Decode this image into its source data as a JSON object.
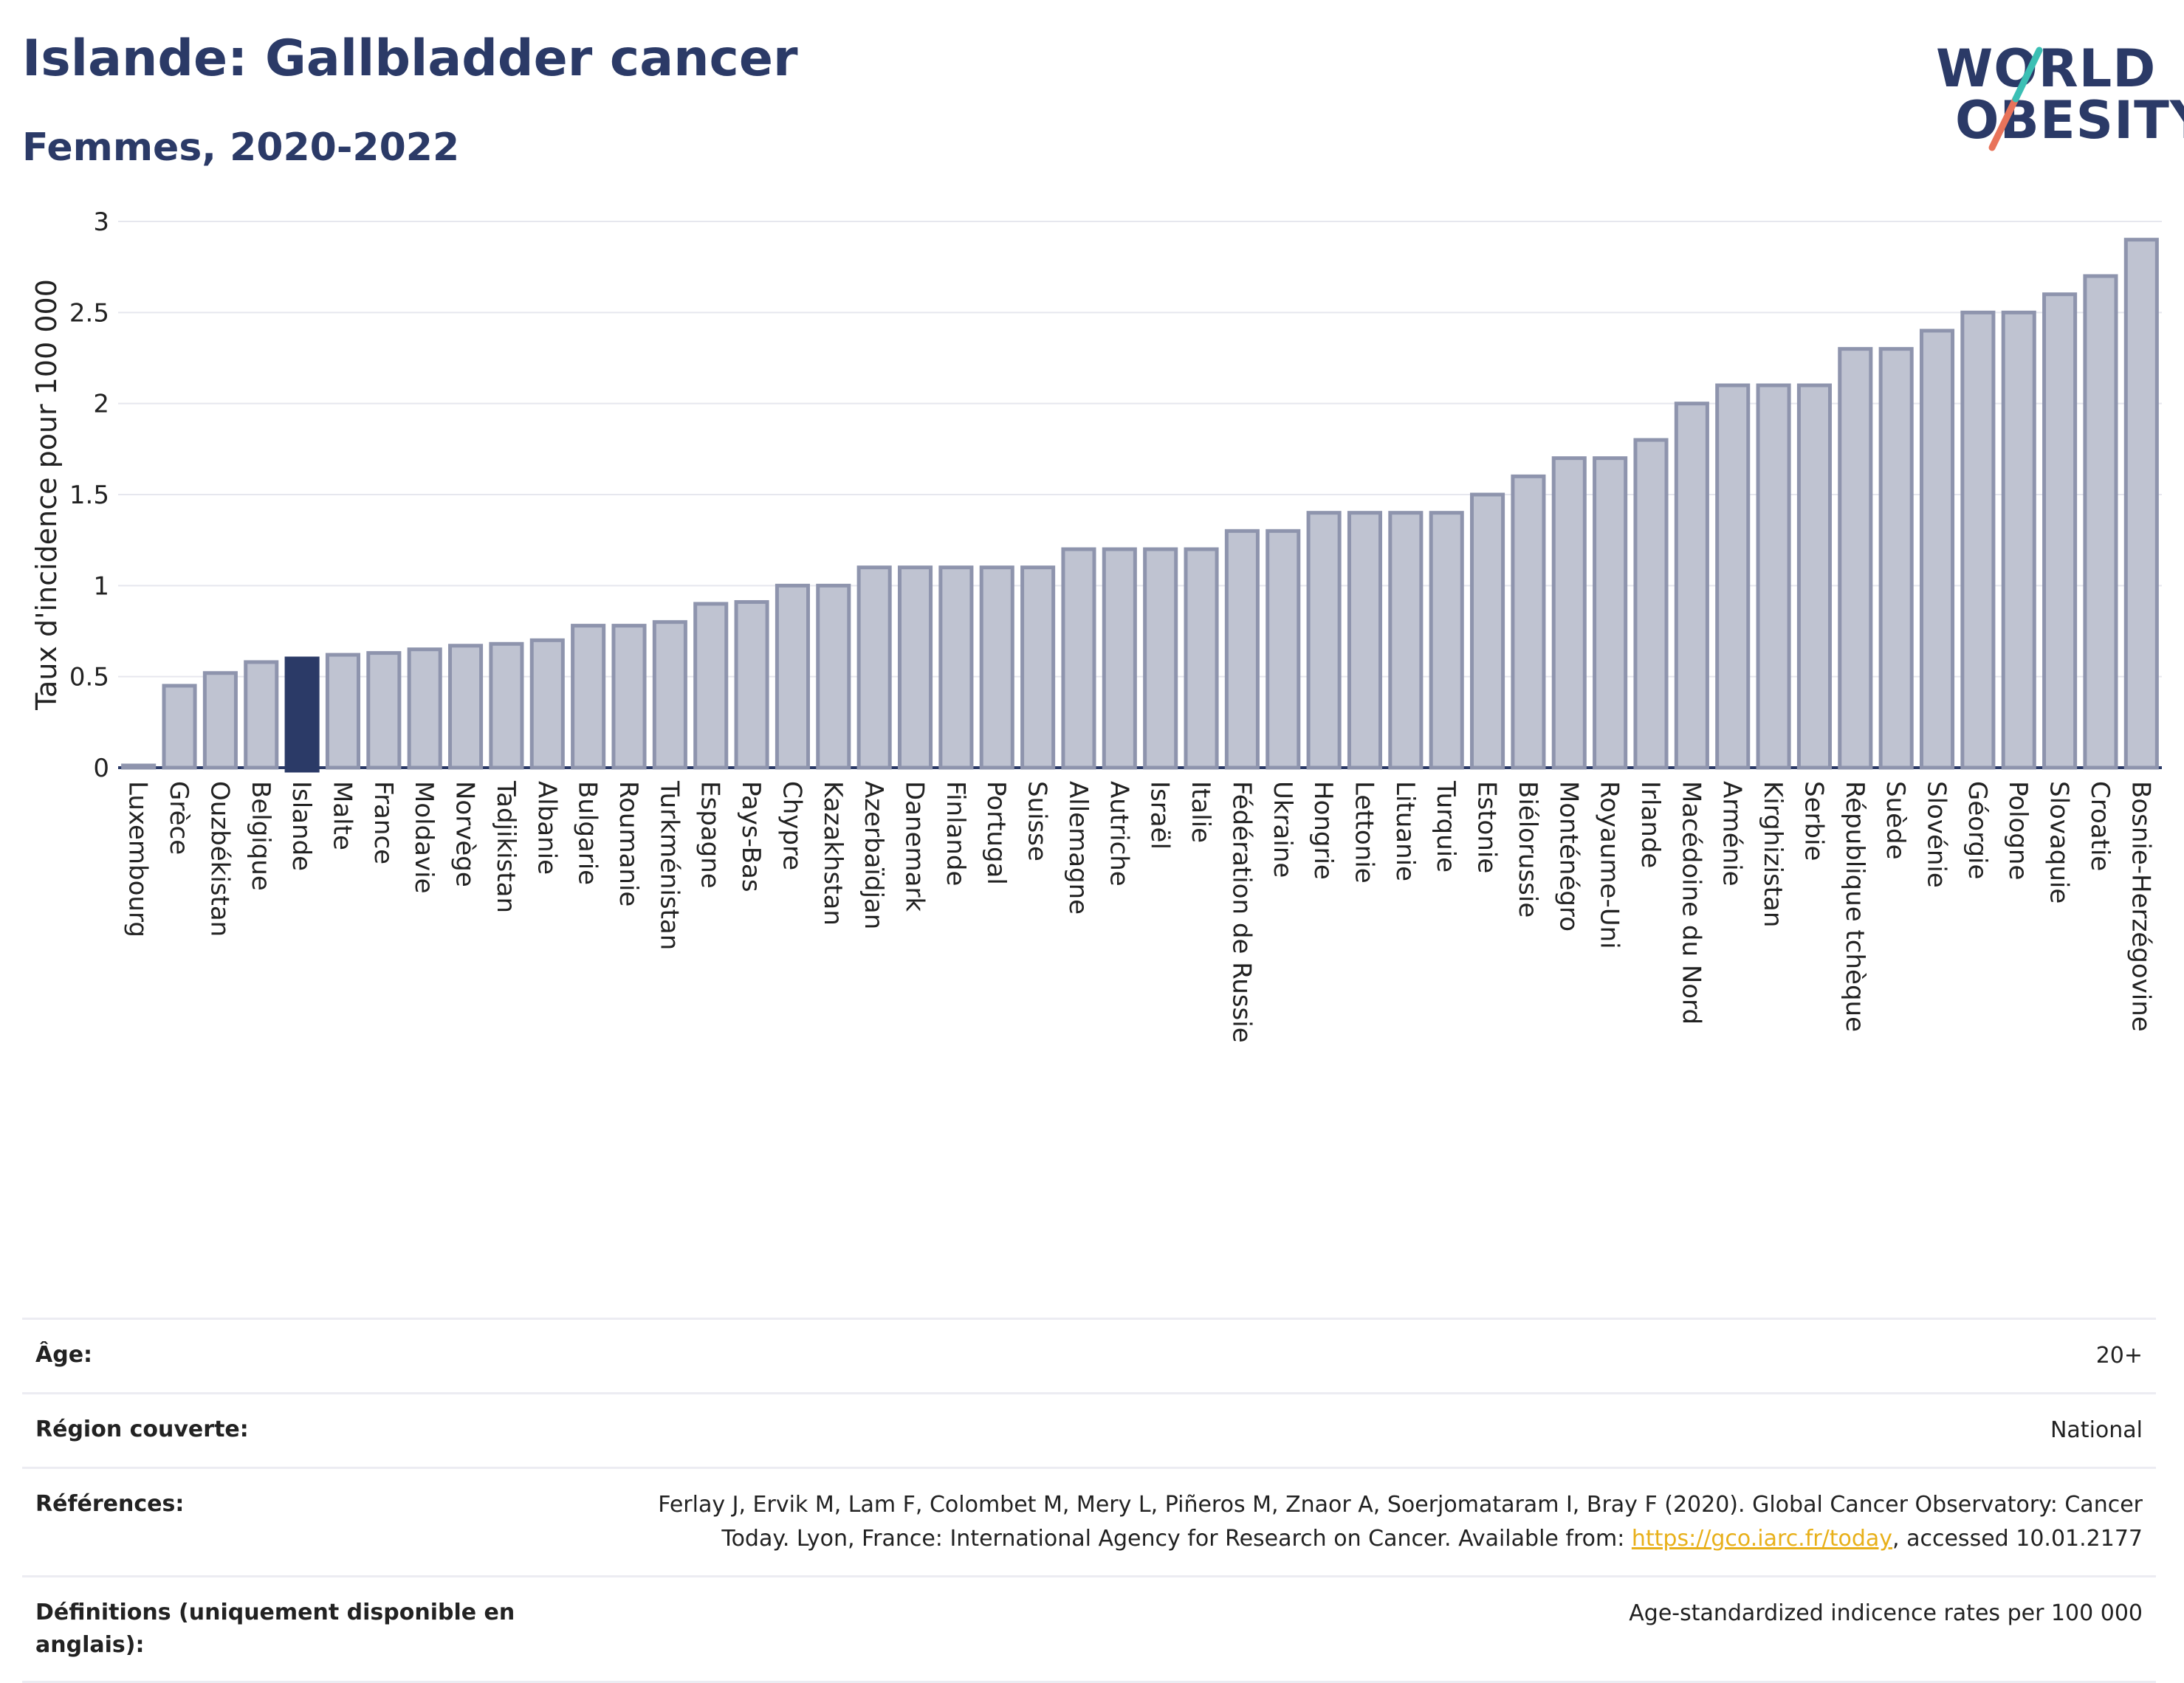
{
  "header": {
    "title": "Islande: Gallbladder cancer",
    "subtitle": "Femmes, 2020-2022"
  },
  "logo": {
    "line1": "WORLD",
    "line2": "OBESITY"
  },
  "colors": {
    "bar": "#bfc3d1",
    "bar_stroke": "#8e94ad",
    "highlight": "#2b3a67",
    "text": "#2b3a67"
  },
  "chart_data": {
    "type": "bar",
    "ylabel": "Taux d'incidence pour 100 000",
    "ylim": [
      0,
      3
    ],
    "yticks": [
      "0",
      "0.5",
      "1",
      "1.5",
      "2",
      "2.5",
      "3"
    ],
    "grid": true,
    "highlight": "Islande",
    "categories": [
      "Luxembourg",
      "Grèce",
      "Ouzbékistan",
      "Belgique",
      "Islande",
      "Malte",
      "France",
      "Moldavie",
      "Norvège",
      "Tadjikistan",
      "Albanie",
      "Bulgarie",
      "Roumanie",
      "Turkménistan",
      "Espagne",
      "Pays-Bas",
      "Chypre",
      "Kazakhstan",
      "Azerbaïdjan",
      "Danemark",
      "Finlande",
      "Portugal",
      "Suisse",
      "Allemagne",
      "Autriche",
      "Israël",
      "Italie",
      "Fédération de Russie",
      "Ukraine",
      "Hongrie",
      "Lettonie",
      "Lituanie",
      "Turquie",
      "Estonie",
      "Biélorussie",
      "Monténégro",
      "Royaume-Uni",
      "Irlande",
      "Macédoine du Nord",
      "Arménie",
      "Kirghizistan",
      "Serbie",
      "République tchèque",
      "Suède",
      "Slovénie",
      "Géorgie",
      "Pologne",
      "Slovaquie",
      "Croatie",
      "Bosnie-Herzégovine"
    ],
    "values": [
      0.01,
      0.45,
      0.52,
      0.58,
      0.6,
      0.62,
      0.63,
      0.65,
      0.67,
      0.68,
      0.7,
      0.78,
      0.78,
      0.8,
      0.9,
      0.91,
      1.0,
      1.0,
      1.1,
      1.1,
      1.1,
      1.1,
      1.1,
      1.2,
      1.2,
      1.2,
      1.2,
      1.3,
      1.3,
      1.4,
      1.4,
      1.4,
      1.4,
      1.5,
      1.6,
      1.7,
      1.7,
      1.8,
      2.0,
      2.1,
      2.1,
      2.1,
      2.3,
      2.3,
      2.4,
      2.5,
      2.5,
      2.6,
      2.7,
      2.9
    ]
  },
  "meta": {
    "age_label": "Âge:",
    "age_value": "20+",
    "region_label": "Région couverte:",
    "region_value": "National",
    "refs_label": "Références:",
    "refs_text_1": "Ferlay J, Ervik M, Lam F, Colombet M, Mery L, Piñeros M, Znaor A, Soerjomataram I, Bray F (2020). Global Cancer Observatory: Cancer Today. Lyon, France: International Agency for Research on Cancer. Available from: ",
    "refs_link": "https://gco.iarc.fr/today",
    "refs_text_2": ", accessed 10.01.2177",
    "defs_label": "Définitions (uniquement disponible en anglais):",
    "defs_value": "Age-standardized indicence rates per 100 000"
  }
}
